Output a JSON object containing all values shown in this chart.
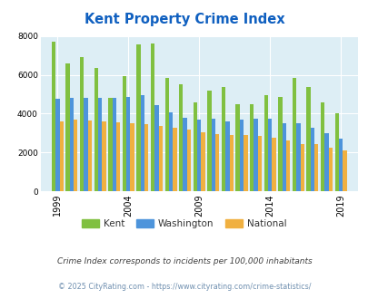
{
  "title": "Kent Property Crime Index",
  "title_color": "#1060c0",
  "plot_bg_color": "#ddeef5",
  "fig_bg_color": "#ffffff",
  "ylim": [
    0,
    8000
  ],
  "yticks": [
    0,
    2000,
    4000,
    6000,
    8000
  ],
  "years": [
    1999,
    2000,
    2001,
    2002,
    2003,
    2004,
    2005,
    2006,
    2007,
    2008,
    2009,
    2010,
    2011,
    2012,
    2013,
    2014,
    2015,
    2016,
    2017,
    2018,
    2019
  ],
  "kent": [
    7700,
    6600,
    6900,
    6350,
    4800,
    5950,
    7550,
    7600,
    5850,
    5500,
    4600,
    5200,
    5350,
    4500,
    4500,
    4950,
    4850,
    5850,
    5350,
    4600,
    4000
  ],
  "washington": [
    4750,
    4800,
    4800,
    4800,
    4800,
    4850,
    4950,
    4450,
    4050,
    3800,
    3700,
    3750,
    3600,
    3700,
    3750,
    3750,
    3500,
    3500,
    3250,
    3000,
    2700
  ],
  "national": [
    3600,
    3700,
    3650,
    3600,
    3550,
    3500,
    3450,
    3350,
    3250,
    3200,
    3050,
    2950,
    2900,
    2900,
    2850,
    2750,
    2600,
    2450,
    2450,
    2250,
    2100
  ],
  "kent_color": "#80c040",
  "washington_color": "#4d94db",
  "national_color": "#f0b040",
  "bar_width": 0.28,
  "note": "Crime Index corresponds to incidents per 100,000 inhabitants",
  "note_color": "#404040",
  "footer": "© 2025 CityRating.com - https://www.cityrating.com/crime-statistics/",
  "footer_color": "#7090b0",
  "xtick_labels": [
    "1999",
    "2004",
    "2009",
    "2014",
    "2019"
  ],
  "xtick_positions": [
    1999,
    2004,
    2009,
    2014,
    2019
  ],
  "xlim": [
    1997.8,
    2020.2
  ]
}
